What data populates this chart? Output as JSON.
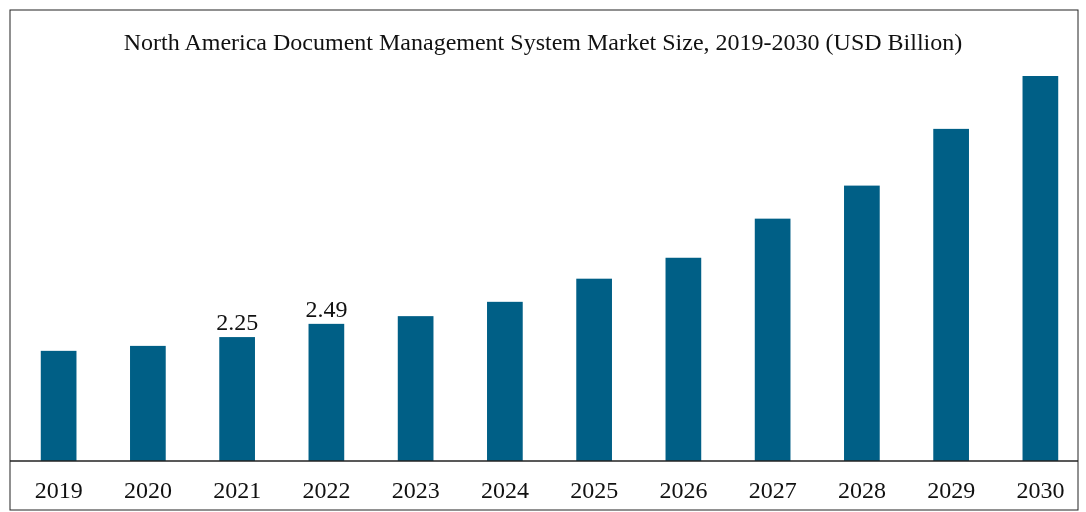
{
  "chart_data": {
    "type": "bar",
    "title": "North America Document Management System Market Size, 2019-2030 (USD Billion)",
    "categories": [
      "2019",
      "2020",
      "2021",
      "2022",
      "2023",
      "2024",
      "2025",
      "2026",
      "2027",
      "2028",
      "2029",
      "2030"
    ],
    "values": [
      2.0,
      2.09,
      2.25,
      2.49,
      2.63,
      2.89,
      3.31,
      3.69,
      4.4,
      5.0,
      6.03,
      6.99
    ],
    "value_labels": [
      null,
      null,
      "2.25",
      "2.49",
      null,
      null,
      null,
      null,
      null,
      null,
      null,
      null
    ],
    "color": "#005f86",
    "tick_labels": "x"
  }
}
